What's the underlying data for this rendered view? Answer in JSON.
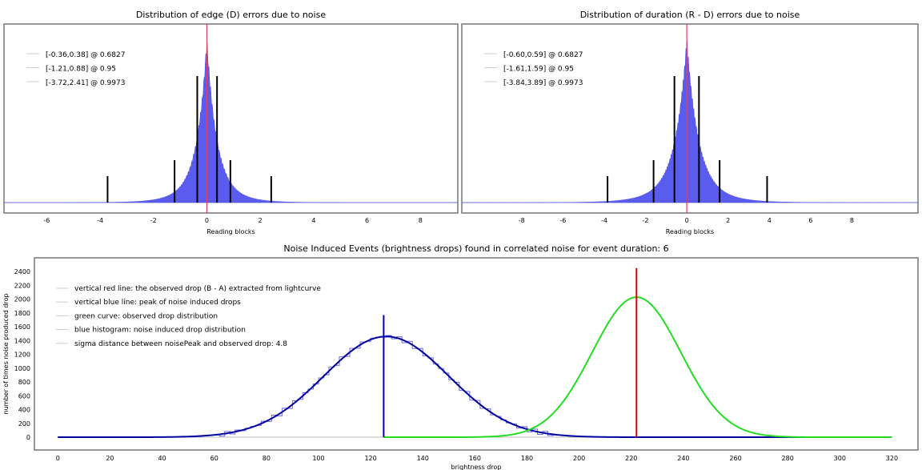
{
  "chart_data": [
    {
      "type": "bar",
      "title": "Distribution of edge (D) errors due to noise",
      "xlabel": "Reading blocks",
      "xlim": [
        -7.6,
        9.4
      ],
      "xticks": [
        -6,
        -4,
        -2,
        0,
        2,
        4,
        6,
        8
      ],
      "distribution": {
        "center": 0,
        "scale": 0.33
      },
      "intervals": [
        {
          "low": -0.36,
          "high": 0.38,
          "level": 0.6827,
          "label": "[-0.36,0.38] @ 0.6827"
        },
        {
          "low": -1.21,
          "high": 0.88,
          "level": 0.95,
          "label": "[-1.21,0.88] @ 0.95"
        },
        {
          "low": -3.72,
          "high": 2.41,
          "level": 0.9973,
          "label": "[-3.72,2.41] @ 0.9973"
        }
      ],
      "marker_x": 0
    },
    {
      "type": "bar",
      "title": "Distribution of duration (R - D) errors due to noise",
      "xlabel": "Reading blocks",
      "xlim": [
        -10.9,
        11.2
      ],
      "xticks": [
        -8,
        -6,
        -4,
        -2,
        0,
        2,
        4,
        6,
        8
      ],
      "distribution": {
        "center": 0,
        "scale": 0.5
      },
      "intervals": [
        {
          "low": -0.6,
          "high": 0.59,
          "level": 0.6827,
          "label": "[-0.60,0.59] @ 0.6827"
        },
        {
          "low": -1.61,
          "high": 1.59,
          "level": 0.95,
          "label": "[-1.61,1.59] @ 0.95"
        },
        {
          "low": -3.84,
          "high": 3.89,
          "level": 0.9973,
          "label": "[-3.84,3.89] @ 0.9973"
        }
      ],
      "marker_x": 0
    },
    {
      "type": "line",
      "title": "Noise Induced Events (brightness drops) found in correlated noise for event duration: 6",
      "xlabel": "brightness drop",
      "ylabel": "number of times noise produced drop",
      "xlim": [
        -9,
        330
      ],
      "ylim": [
        -185,
        2600
      ],
      "xticks": [
        0,
        20,
        40,
        60,
        80,
        100,
        120,
        140,
        160,
        180,
        200,
        220,
        240,
        260,
        280,
        300,
        320
      ],
      "yticks": [
        0,
        200,
        400,
        600,
        800,
        1000,
        1200,
        1400,
        1600,
        1800,
        2000,
        2200,
        2400
      ],
      "legend": [
        "vertical red line: the observed drop (B - A) extracted from lightcurve",
        "vertical blue line: peak of noise induced drops",
        "green curve: observed drop distribution",
        "blue histogram: noise induced drop distribution",
        "sigma distance between noisePeak and observed drop: 4.8"
      ],
      "noise_gaussian": {
        "mean": 126,
        "sigma": 24,
        "peak": 1460
      },
      "observed_gaussian": {
        "mean": 222,
        "sigma": 17,
        "peak": 2030
      },
      "red_line": {
        "x": 222,
        "top": 2450
      },
      "blue_line": {
        "x": 125,
        "top": 1770
      }
    }
  ]
}
